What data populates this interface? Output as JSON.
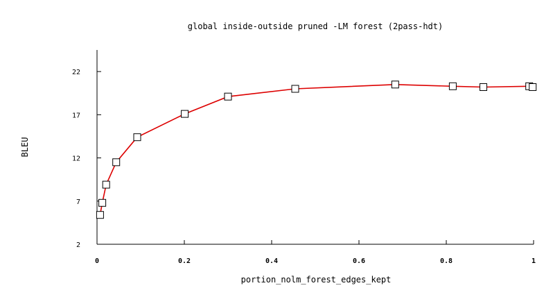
{
  "chart_data": {
    "type": "line",
    "title": "global inside-outside pruned -LM forest (2pass-hdt)",
    "xlabel": "portion_nolm_forest_edges_kept",
    "ylabel": "BLEU",
    "xlim": [
      0,
      1
    ],
    "ylim": [
      2,
      24.5
    ],
    "x_ticks": [
      {
        "value": 0,
        "label": "0"
      },
      {
        "value": 0.2,
        "label": "0.2"
      },
      {
        "value": 0.4,
        "label": "0.4"
      },
      {
        "value": 0.6,
        "label": "0.6"
      },
      {
        "value": 0.8,
        "label": "0.8"
      },
      {
        "value": 1,
        "label": "1"
      }
    ],
    "y_ticks": [
      {
        "value": 2,
        "label": "2"
      },
      {
        "value": 7,
        "label": "7"
      },
      {
        "value": 12,
        "label": "12"
      },
      {
        "value": 17,
        "label": "17"
      },
      {
        "value": 22,
        "label": "22"
      }
    ],
    "grid": false,
    "series": [
      {
        "line_color": "#dd0000",
        "marker": "open-square",
        "points": [
          {
            "x": 0.007,
            "y": 5.4
          },
          {
            "x": 0.012,
            "y": 6.8
          },
          {
            "x": 0.021,
            "y": 8.9
          },
          {
            "x": 0.044,
            "y": 11.5
          },
          {
            "x": 0.092,
            "y": 14.4
          },
          {
            "x": 0.201,
            "y": 17.1
          },
          {
            "x": 0.3,
            "y": 19.1
          },
          {
            "x": 0.454,
            "y": 20.0
          },
          {
            "x": 0.683,
            "y": 20.5
          },
          {
            "x": 0.815,
            "y": 20.3
          },
          {
            "x": 0.885,
            "y": 20.2
          },
          {
            "x": 0.99,
            "y": 20.3
          },
          {
            "x": 0.998,
            "y": 20.2
          }
        ]
      }
    ]
  }
}
